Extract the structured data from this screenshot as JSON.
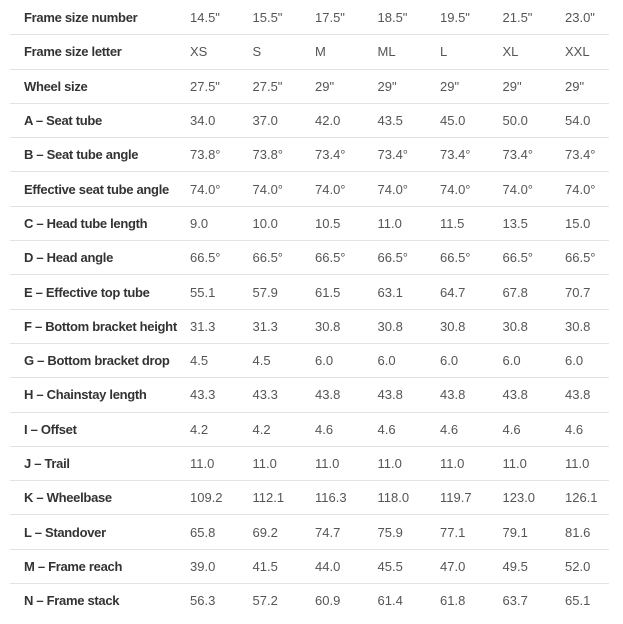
{
  "theme": {
    "background": "#ffffff",
    "label_text": "#333333",
    "value_text": "#555555",
    "divider": "#e3e3e3"
  },
  "chart_data": {
    "type": "table",
    "title": "",
    "columns": [
      "14.5\"",
      "15.5\"",
      "17.5\"",
      "18.5\"",
      "19.5\"",
      "21.5\"",
      "23.0\""
    ],
    "rows": [
      {
        "label": "Frame size number",
        "values": [
          "14.5\"",
          "15.5\"",
          "17.5\"",
          "18.5\"",
          "19.5\"",
          "21.5\"",
          "23.0\""
        ]
      },
      {
        "label": "Frame size letter",
        "values": [
          "XS",
          "S",
          "M",
          "ML",
          "L",
          "XL",
          "XXL"
        ]
      },
      {
        "label": "Wheel size",
        "values": [
          "27.5\"",
          "27.5\"",
          "29\"",
          "29\"",
          "29\"",
          "29\"",
          "29\""
        ]
      },
      {
        "label": "A – Seat tube",
        "values": [
          "34.0",
          "37.0",
          "42.0",
          "43.5",
          "45.0",
          "50.0",
          "54.0"
        ]
      },
      {
        "label": "B – Seat tube angle",
        "values": [
          "73.8°",
          "73.8°",
          "73.4°",
          "73.4°",
          "73.4°",
          "73.4°",
          "73.4°"
        ]
      },
      {
        "label": "Effective seat tube angle",
        "values": [
          "74.0°",
          "74.0°",
          "74.0°",
          "74.0°",
          "74.0°",
          "74.0°",
          "74.0°"
        ]
      },
      {
        "label": "C – Head tube length",
        "values": [
          "9.0",
          "10.0",
          "10.5",
          "11.0",
          "11.5",
          "13.5",
          "15.0"
        ]
      },
      {
        "label": "D – Head angle",
        "values": [
          "66.5°",
          "66.5°",
          "66.5°",
          "66.5°",
          "66.5°",
          "66.5°",
          "66.5°"
        ]
      },
      {
        "label": "E – Effective top tube",
        "values": [
          "55.1",
          "57.9",
          "61.5",
          "63.1",
          "64.7",
          "67.8",
          "70.7"
        ]
      },
      {
        "label": "F – Bottom bracket height",
        "values": [
          "31.3",
          "31.3",
          "30.8",
          "30.8",
          "30.8",
          "30.8",
          "30.8"
        ]
      },
      {
        "label": "G – Bottom bracket drop",
        "values": [
          "4.5",
          "4.5",
          "6.0",
          "6.0",
          "6.0",
          "6.0",
          "6.0"
        ]
      },
      {
        "label": "H – Chainstay length",
        "values": [
          "43.3",
          "43.3",
          "43.8",
          "43.8",
          "43.8",
          "43.8",
          "43.8"
        ]
      },
      {
        "label": "I – Offset",
        "values": [
          "4.2",
          "4.2",
          "4.6",
          "4.6",
          "4.6",
          "4.6",
          "4.6"
        ]
      },
      {
        "label": "J – Trail",
        "values": [
          "11.0",
          "11.0",
          "11.0",
          "11.0",
          "11.0",
          "11.0",
          "11.0"
        ]
      },
      {
        "label": "K – Wheelbase",
        "values": [
          "109.2",
          "112.1",
          "116.3",
          "118.0",
          "119.7",
          "123.0",
          "126.1"
        ]
      },
      {
        "label": "L – Standover",
        "values": [
          "65.8",
          "69.2",
          "74.7",
          "75.9",
          "77.1",
          "79.1",
          "81.6"
        ]
      },
      {
        "label": "M – Frame reach",
        "values": [
          "39.0",
          "41.5",
          "44.0",
          "45.5",
          "47.0",
          "49.5",
          "52.0"
        ]
      },
      {
        "label": "N – Frame stack",
        "values": [
          "56.3",
          "57.2",
          "60.9",
          "61.4",
          "61.8",
          "63.7",
          "65.1"
        ]
      }
    ]
  }
}
